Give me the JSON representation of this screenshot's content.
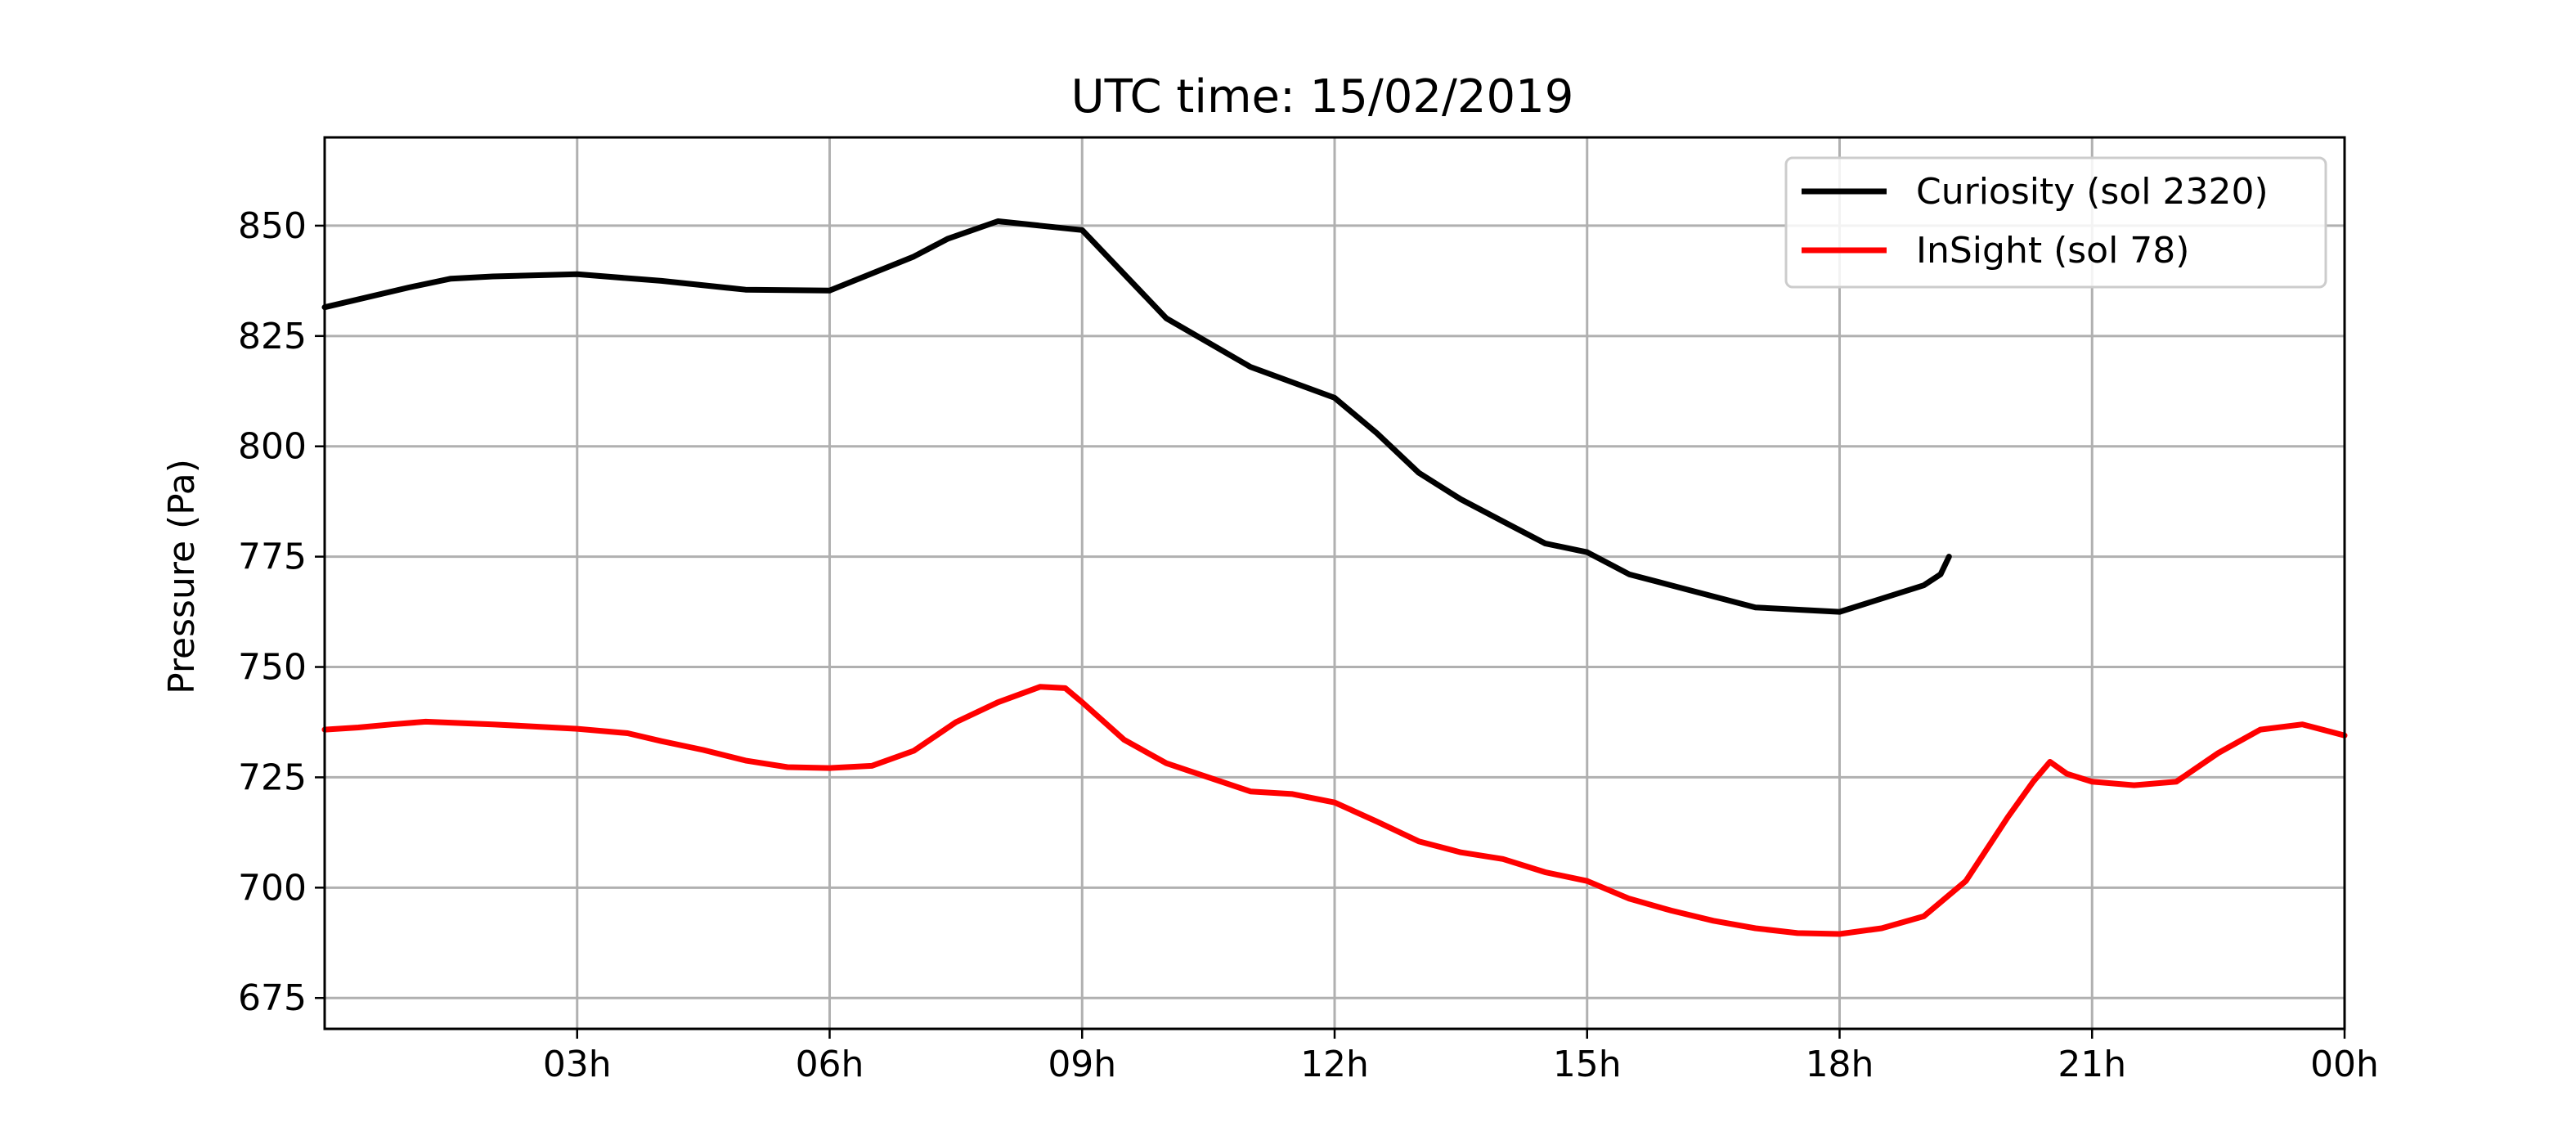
{
  "chart_data": {
    "type": "line",
    "title": "UTC time: 15/02/2019",
    "xlabel": "",
    "ylabel": "Pressure (Pa)",
    "xlim": [
      0,
      24
    ],
    "ylim": [
      668,
      870
    ],
    "x_ticks": [
      {
        "value": 3,
        "label": "03h"
      },
      {
        "value": 6,
        "label": "06h"
      },
      {
        "value": 9,
        "label": "09h"
      },
      {
        "value": 12,
        "label": "12h"
      },
      {
        "value": 15,
        "label": "15h"
      },
      {
        "value": 18,
        "label": "18h"
      },
      {
        "value": 21,
        "label": "21h"
      },
      {
        "value": 24,
        "label": "00h"
      }
    ],
    "y_ticks": [
      {
        "value": 675,
        "label": "675"
      },
      {
        "value": 700,
        "label": "700"
      },
      {
        "value": 725,
        "label": "725"
      },
      {
        "value": 750,
        "label": "750"
      },
      {
        "value": 775,
        "label": "775"
      },
      {
        "value": 800,
        "label": "800"
      },
      {
        "value": 825,
        "label": "825"
      },
      {
        "value": 850,
        "label": "850"
      }
    ],
    "grid": true,
    "legend_position": "top-right",
    "series": [
      {
        "name": "Curiosity (sol 2320)",
        "color": "#000000",
        "x": [
          0.0,
          1.0,
          1.5,
          2.0,
          3.0,
          4.0,
          5.0,
          6.0,
          7.0,
          7.4,
          8.0,
          9.0,
          10.0,
          11.0,
          12.0,
          12.5,
          13.0,
          13.5,
          14.0,
          14.5,
          15.0,
          15.5,
          16.0,
          17.0,
          18.0,
          19.0,
          19.2,
          19.3
        ],
        "values": [
          831.5,
          836,
          838,
          838.5,
          839,
          837.5,
          835.5,
          835.3,
          843,
          847,
          851,
          849,
          829,
          818,
          811,
          803,
          794,
          788,
          783,
          778,
          776,
          771,
          768.5,
          763.5,
          762.5,
          768.5,
          771,
          775
        ]
      },
      {
        "name": "InSight (sol 78)",
        "color": "#ff0000",
        "x": [
          0.0,
          0.4,
          0.8,
          1.2,
          2.0,
          3.0,
          3.6,
          4.0,
          4.5,
          5.0,
          5.5,
          6.0,
          6.5,
          7.0,
          7.5,
          8.0,
          8.5,
          8.8,
          9.0,
          9.5,
          10.0,
          10.5,
          11.0,
          11.5,
          12.0,
          12.5,
          13.0,
          13.5,
          14.0,
          14.5,
          15.0,
          15.5,
          16.0,
          16.5,
          17.0,
          17.5,
          18.0,
          18.5,
          19.0,
          19.5,
          20.0,
          20.3,
          20.5,
          20.7,
          21.0,
          21.5,
          22.0,
          22.5,
          23.0,
          23.5,
          24.0
        ],
        "values": [
          735.8,
          736.3,
          737,
          737.6,
          737,
          736,
          735,
          733.2,
          731.2,
          728.8,
          727.3,
          727.1,
          727.6,
          731,
          737.5,
          742,
          745.5,
          745.2,
          742,
          733.5,
          728.2,
          725,
          721.8,
          721.2,
          719.3,
          715,
          710.5,
          708,
          706.5,
          703.5,
          701.5,
          697.5,
          694.8,
          692.5,
          690.8,
          689.7,
          689.5,
          690.8,
          693.5,
          701.5,
          716,
          724,
          728.5,
          725.8,
          724,
          723.2,
          724,
          730.5,
          735.8,
          737,
          734.5
        ]
      }
    ]
  }
}
